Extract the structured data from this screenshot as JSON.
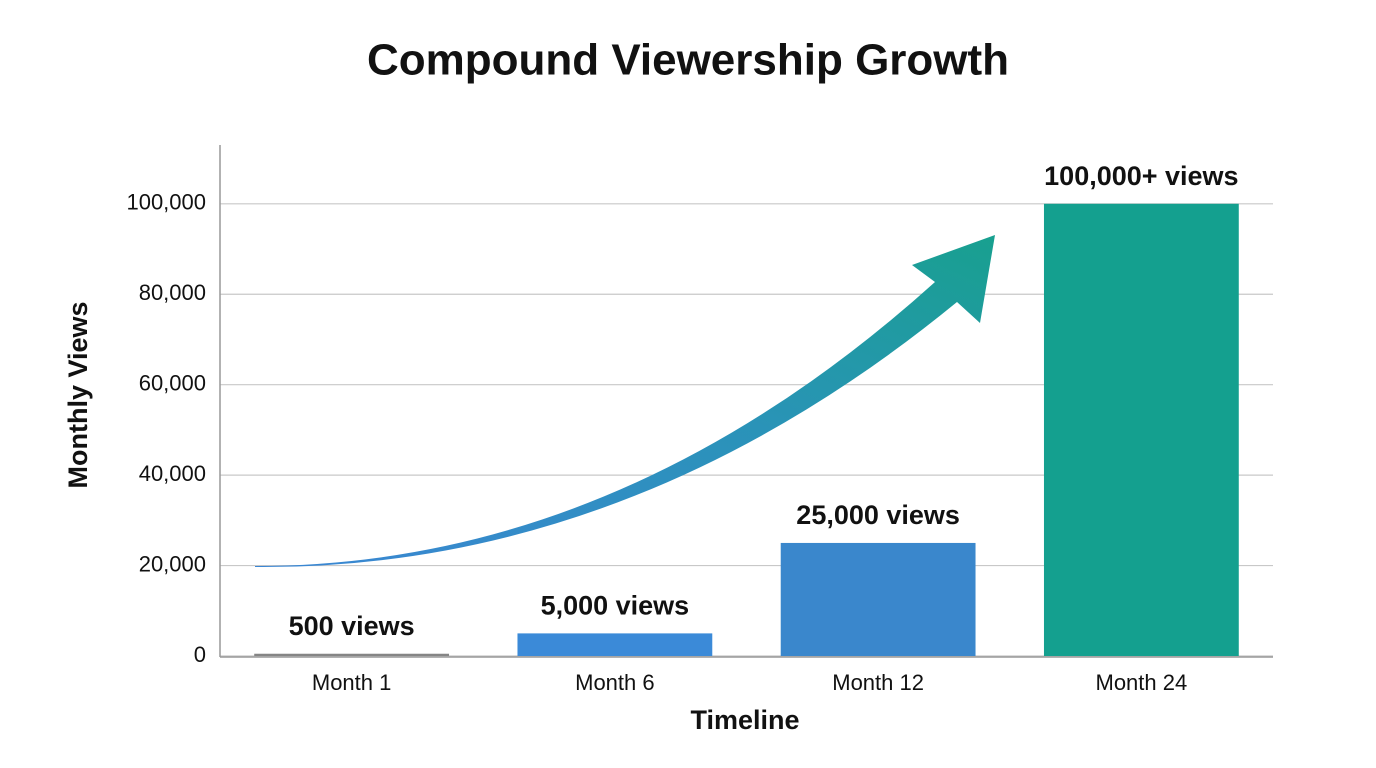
{
  "chart_data": {
    "type": "bar",
    "title": "Compound Viewership Growth",
    "x_label": "Timeline",
    "y_label": "Monthly Views",
    "categories": [
      "Month 1",
      "Month 6",
      "Month 12",
      "Month 24"
    ],
    "values": [
      500,
      5000,
      25000,
      100000
    ],
    "value_labels": [
      "500 views",
      "5,000 views",
      "25,000 views",
      "100,000+ views"
    ],
    "colors": [
      "#858585",
      "#3b8ad8",
      "#3a87cc",
      "#14a08f"
    ],
    "ylim": [
      0,
      113000
    ],
    "yticks": [
      0,
      {
        "value": 20000,
        "label": "20,000"
      },
      {
        "value": 40000,
        "label": "40,000"
      },
      {
        "value": 60000,
        "label": "60,000"
      },
      {
        "value": 80000,
        "label": "80,000"
      },
      {
        "value": 100000,
        "label": "100,000"
      }
    ],
    "grid": true
  }
}
